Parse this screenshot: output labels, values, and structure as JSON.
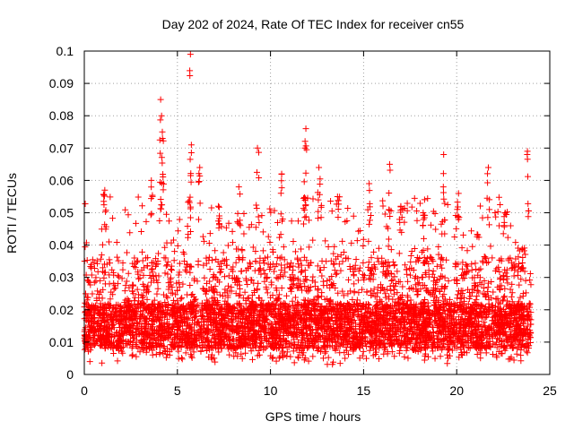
{
  "chart_data": {
    "type": "scatter",
    "title": "Day 202 of 2024, Rate Of TEC Index for receiver cn55",
    "xlabel": "GPS time / hours",
    "ylabel": "ROTI / TECUs",
    "xlim": [
      0,
      25
    ],
    "ylim": [
      0,
      0.1
    ],
    "xticks": [
      0,
      5,
      10,
      15,
      20,
      25
    ],
    "xtick_labels": [
      "0",
      "5",
      "10",
      "15",
      "20",
      "25"
    ],
    "yticks": [
      0,
      0.01,
      0.02,
      0.03,
      0.04,
      0.05,
      0.06,
      0.07,
      0.08,
      0.09,
      0.1
    ],
    "ytick_labels": [
      "0",
      "0.01",
      "0.02",
      "0.03",
      "0.04",
      "0.05",
      "0.06",
      "0.07",
      "0.08",
      "0.09",
      "0.1"
    ],
    "grid": true,
    "marker": "+",
    "series_color": "#ff0000",
    "x_range_hours": [
      0,
      24
    ],
    "baseline_band": [
      0.008,
      0.022
    ],
    "bulk_max": 0.045,
    "peaks": [
      {
        "x": 4.1,
        "y": 0.085
      },
      {
        "x": 4.15,
        "y": 0.08
      },
      {
        "x": 4.2,
        "y": 0.073
      },
      {
        "x": 5.7,
        "y": 0.099
      },
      {
        "x": 5.75,
        "y": 0.071
      },
      {
        "x": 11.9,
        "y": 0.076
      },
      {
        "x": 11.85,
        "y": 0.07
      },
      {
        "x": 16.4,
        "y": 0.065
      },
      {
        "x": 19.3,
        "y": 0.068
      },
      {
        "x": 23.8,
        "y": 0.069
      },
      {
        "x": 9.3,
        "y": 0.07
      },
      {
        "x": 3.6,
        "y": 0.06
      },
      {
        "x": 6.2,
        "y": 0.064
      },
      {
        "x": 12.6,
        "y": 0.064
      },
      {
        "x": 21.7,
        "y": 0.064
      },
      {
        "x": 15.3,
        "y": 0.059
      },
      {
        "x": 7.2,
        "y": 0.052
      },
      {
        "x": 8.3,
        "y": 0.058
      },
      {
        "x": 20.1,
        "y": 0.056
      },
      {
        "x": 1.1,
        "y": 0.057
      },
      {
        "x": 10.6,
        "y": 0.062
      },
      {
        "x": 13.6,
        "y": 0.055
      },
      {
        "x": 17.0,
        "y": 0.052
      },
      {
        "x": 18.2,
        "y": 0.05
      },
      {
        "x": 22.6,
        "y": 0.05
      }
    ]
  }
}
